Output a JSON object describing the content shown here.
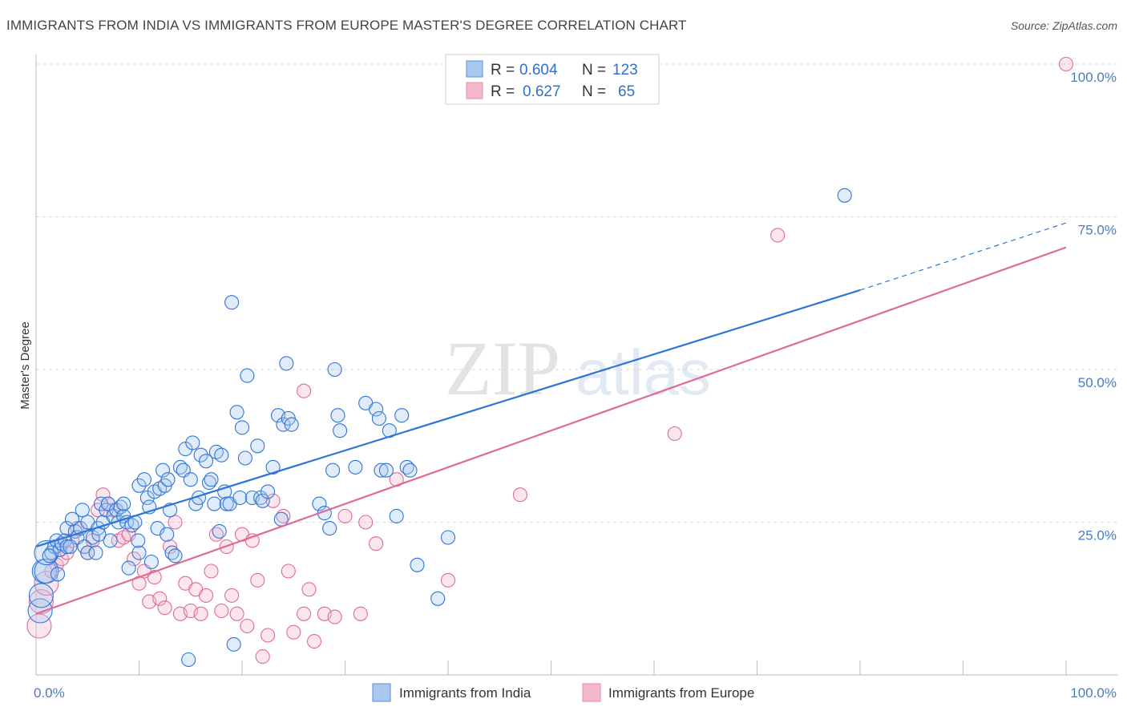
{
  "header": {
    "title": "IMMIGRANTS FROM INDIA VS IMMIGRANTS FROM EUROPE MASTER'S DEGREE CORRELATION CHART",
    "source": "Source: ZipAtlas.com"
  },
  "watermark": {
    "zip": "ZIP",
    "atlas": "atlas"
  },
  "colors": {
    "india": "#2f75d6",
    "india_fill": "#a9c8f0",
    "europe": "#e06a97",
    "europe_fill": "#f5b8cc",
    "axis_tick": "#4a7cc4",
    "grid": "#d9d9d9"
  },
  "stats_legend": {
    "india": {
      "r_label": "R =",
      "r_value": "0.604",
      "n_label": "N =",
      "n_value": "123"
    },
    "europe": {
      "r_label": "R =",
      "r_value": "0.627",
      "n_label": "N =",
      "n_value": "65"
    }
  },
  "chart_data": {
    "type": "scatter",
    "title": "IMMIGRANTS FROM INDIA VS IMMIGRANTS FROM EUROPE MASTER'S DEGREE CORRELATION CHART",
    "xlabel": "",
    "ylabel": "Master's Degree",
    "xlim": [
      0,
      100
    ],
    "ylim": [
      0,
      100
    ],
    "x_tick_labels": [
      "0.0%",
      "100.0%"
    ],
    "y_tick_labels": [
      "25.0%",
      "50.0%",
      "75.0%",
      "100.0%"
    ],
    "y_ticks": [
      25,
      50,
      75,
      100
    ],
    "grid": true,
    "legend_position": "bottom-center",
    "series": [
      {
        "name": "Immigrants from India",
        "color": "#2f75d6",
        "trend": {
          "x": [
            0,
            80
          ],
          "y": [
            21.0,
            63.0
          ],
          "dashed_to": [
            100,
            74.0
          ]
        },
        "points": [
          [
            0.4,
            10.5
          ],
          [
            0.5,
            13
          ],
          [
            0.8,
            17
          ],
          [
            1,
            17
          ],
          [
            1,
            20
          ],
          [
            1.5,
            20
          ],
          [
            1.8,
            21
          ],
          [
            2,
            22
          ],
          [
            2.3,
            20.5
          ],
          [
            2.5,
            21.5
          ],
          [
            2.8,
            22
          ],
          [
            3,
            21
          ],
          [
            3,
            24
          ],
          [
            3.5,
            25.5
          ],
          [
            3.8,
            23.5
          ],
          [
            4,
            22.5
          ],
          [
            4.3,
            24
          ],
          [
            4.5,
            27
          ],
          [
            4.7,
            21
          ],
          [
            5,
            25
          ],
          [
            5,
            20
          ],
          [
            5.5,
            22.5
          ],
          [
            6,
            24
          ],
          [
            6.3,
            28
          ],
          [
            6.5,
            25
          ],
          [
            6.8,
            27
          ],
          [
            7,
            28
          ],
          [
            7.5,
            26
          ],
          [
            7.8,
            27
          ],
          [
            8,
            25
          ],
          [
            8.2,
            27.5
          ],
          [
            8.5,
            26
          ],
          [
            8.8,
            25
          ],
          [
            9,
            17.5
          ],
          [
            9.3,
            24.5
          ],
          [
            9.6,
            25
          ],
          [
            10,
            20
          ],
          [
            10,
            31
          ],
          [
            10.5,
            32
          ],
          [
            10.8,
            29
          ],
          [
            11,
            27.5
          ],
          [
            11.5,
            30
          ],
          [
            11.8,
            24
          ],
          [
            12,
            30.5
          ],
          [
            12.3,
            33.5
          ],
          [
            12.5,
            31
          ],
          [
            12.8,
            32
          ],
          [
            13,
            27
          ],
          [
            13.2,
            20
          ],
          [
            13.5,
            19.5
          ],
          [
            14,
            34
          ],
          [
            14.3,
            33.5
          ],
          [
            14.5,
            37
          ],
          [
            15,
            32
          ],
          [
            15.2,
            38
          ],
          [
            15.5,
            28
          ],
          [
            15.8,
            29
          ],
          [
            16,
            36
          ],
          [
            16.5,
            35
          ],
          [
            16.8,
            31.5
          ],
          [
            17,
            32
          ],
          [
            17.3,
            28
          ],
          [
            17.5,
            36.5
          ],
          [
            17.8,
            23.5
          ],
          [
            18,
            36
          ],
          [
            18.3,
            30
          ],
          [
            18.5,
            28
          ],
          [
            18.8,
            28
          ],
          [
            19,
            61
          ],
          [
            19.2,
            5
          ],
          [
            19.5,
            43
          ],
          [
            19.8,
            29
          ],
          [
            20,
            40.5
          ],
          [
            20.3,
            35.5
          ],
          [
            20.5,
            49
          ],
          [
            21,
            29
          ],
          [
            21.5,
            37.5
          ],
          [
            21.8,
            29
          ],
          [
            22,
            28.5
          ],
          [
            22.5,
            30
          ],
          [
            23,
            34
          ],
          [
            23.5,
            42.5
          ],
          [
            23.8,
            25.5
          ],
          [
            24,
            41
          ],
          [
            24.3,
            51
          ],
          [
            24.5,
            42
          ],
          [
            24.8,
            41
          ],
          [
            27.5,
            28
          ],
          [
            28,
            26.5
          ],
          [
            28.5,
            24
          ],
          [
            28.8,
            33.5
          ],
          [
            29,
            50
          ],
          [
            29.3,
            42.5
          ],
          [
            29.5,
            40
          ],
          [
            31,
            34
          ],
          [
            32,
            44.5
          ],
          [
            33,
            43.5
          ],
          [
            33.3,
            42
          ],
          [
            33.5,
            33.5
          ],
          [
            34,
            33.5
          ],
          [
            34.3,
            40
          ],
          [
            35,
            26
          ],
          [
            35.5,
            42.5
          ],
          [
            36,
            34
          ],
          [
            36.3,
            33.5
          ],
          [
            37,
            18
          ],
          [
            39,
            12.5
          ],
          [
            40,
            22.5
          ],
          [
            78.5,
            78.5
          ],
          [
            14.8,
            2.5
          ],
          [
            8.5,
            28
          ],
          [
            7.2,
            22
          ],
          [
            5.8,
            20
          ],
          [
            3.3,
            21
          ],
          [
            1.3,
            19.5
          ],
          [
            2.1,
            16.5
          ],
          [
            6.1,
            23
          ],
          [
            9.9,
            22
          ],
          [
            11.2,
            18.5
          ],
          [
            12.7,
            23
          ]
        ]
      },
      {
        "name": "Immigrants from Europe",
        "color": "#e06a97",
        "trend": {
          "x": [
            0,
            100
          ],
          "y": [
            10.0,
            70.0
          ]
        },
        "points": [
          [
            0.3,
            8
          ],
          [
            0.5,
            12
          ],
          [
            1,
            15
          ],
          [
            1.5,
            17
          ],
          [
            2,
            18
          ],
          [
            2.5,
            19
          ],
          [
            3,
            20
          ],
          [
            3.5,
            22
          ],
          [
            4,
            24
          ],
          [
            5,
            20
          ],
          [
            5.5,
            22
          ],
          [
            6,
            27
          ],
          [
            6.5,
            29.5
          ],
          [
            7,
            28
          ],
          [
            7.5,
            27
          ],
          [
            8,
            22
          ],
          [
            8.5,
            22.5
          ],
          [
            9,
            23
          ],
          [
            9.5,
            19
          ],
          [
            10,
            15
          ],
          [
            10.5,
            17
          ],
          [
            11,
            12
          ],
          [
            11.5,
            16
          ],
          [
            12,
            12.5
          ],
          [
            12.5,
            11
          ],
          [
            13,
            21
          ],
          [
            13.5,
            25
          ],
          [
            14,
            10
          ],
          [
            14.5,
            15
          ],
          [
            15,
            10.5
          ],
          [
            15.5,
            14
          ],
          [
            16,
            10
          ],
          [
            16.5,
            13
          ],
          [
            17,
            17
          ],
          [
            17.5,
            23
          ],
          [
            18,
            10.5
          ],
          [
            18.5,
            21
          ],
          [
            19,
            13
          ],
          [
            19.5,
            10
          ],
          [
            20,
            23
          ],
          [
            20.5,
            8
          ],
          [
            21,
            22
          ],
          [
            21.5,
            15.5
          ],
          [
            22,
            3
          ],
          [
            22.5,
            6.5
          ],
          [
            23,
            28.5
          ],
          [
            24,
            26
          ],
          [
            24.5,
            17
          ],
          [
            25,
            7
          ],
          [
            26,
            10
          ],
          [
            26.5,
            14
          ],
          [
            27,
            5.5
          ],
          [
            28,
            10
          ],
          [
            29,
            9.5
          ],
          [
            30,
            26
          ],
          [
            31.5,
            10
          ],
          [
            32,
            25
          ],
          [
            33,
            21.5
          ],
          [
            35,
            32
          ],
          [
            40,
            15.5
          ],
          [
            47,
            29.5
          ],
          [
            62,
            39.5
          ],
          [
            72,
            72
          ],
          [
            100,
            100
          ],
          [
            26,
            46.5
          ]
        ]
      }
    ]
  },
  "bottom_legend": {
    "india_label": "Immigrants from India",
    "europe_label": "Immigrants from Europe"
  }
}
